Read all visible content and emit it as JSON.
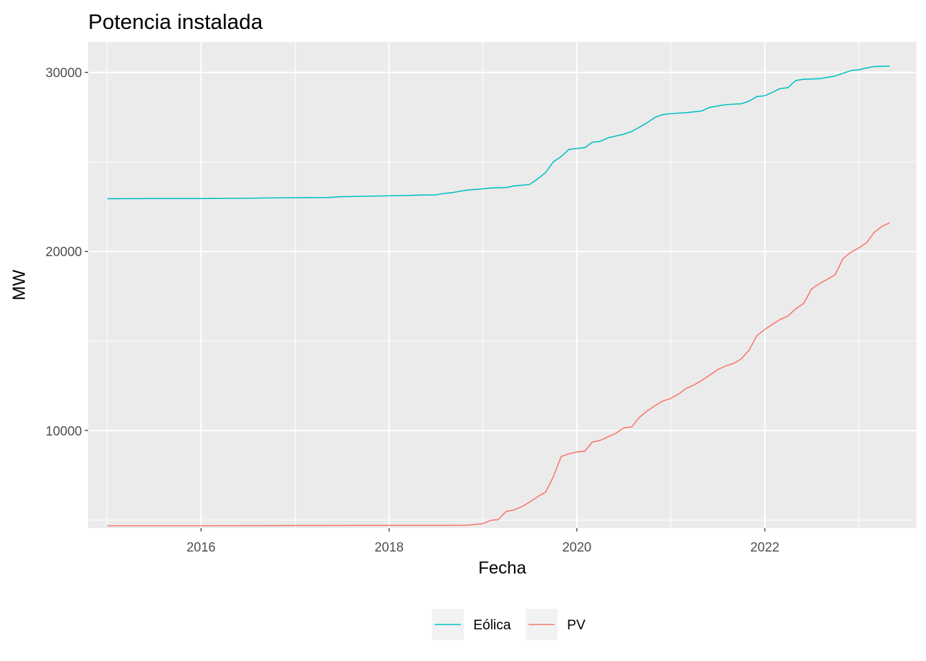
{
  "chart_data": {
    "type": "line",
    "title": "Potencia instalada",
    "xlabel": "Fecha",
    "ylabel": "MW",
    "xlim": [
      "2014-10-19",
      "2023-08-13"
    ],
    "ylim": [
      4550,
      31700
    ],
    "x_ticks": [
      {
        "date": "2016-01-01",
        "label": "2016"
      },
      {
        "date": "2018-01-01",
        "label": "2018"
      },
      {
        "date": "2020-01-01",
        "label": "2020"
      },
      {
        "date": "2022-01-01",
        "label": "2022"
      }
    ],
    "x_minor_ticks": [
      "2015-01-01",
      "2017-01-01",
      "2019-01-01",
      "2021-01-01",
      "2023-01-01"
    ],
    "y_ticks": [
      {
        "value": 10000,
        "label": "10000"
      },
      {
        "value": 20000,
        "label": "20000"
      },
      {
        "value": 30000,
        "label": "30000"
      }
    ],
    "y_minor_ticks": [
      5000,
      15000,
      25000
    ],
    "grid": true,
    "legend_position": "bottom",
    "series": [
      {
        "name": "Eólica",
        "color": "#00bfc4",
        "points": [
          [
            "2015-01-01",
            22950
          ],
          [
            "2015-07-01",
            22960
          ],
          [
            "2016-01-01",
            22960
          ],
          [
            "2016-07-01",
            22970
          ],
          [
            "2016-09-01",
            22990
          ],
          [
            "2017-01-01",
            23000
          ],
          [
            "2017-05-01",
            23010
          ],
          [
            "2017-07-01",
            23060
          ],
          [
            "2018-01-01",
            23110
          ],
          [
            "2018-03-01",
            23120
          ],
          [
            "2018-05-01",
            23150
          ],
          [
            "2018-07-01",
            23160
          ],
          [
            "2018-08-01",
            23240
          ],
          [
            "2018-09-01",
            23280
          ],
          [
            "2018-10-01",
            23360
          ],
          [
            "2018-11-01",
            23430
          ],
          [
            "2019-01-01",
            23500
          ],
          [
            "2019-02-01",
            23550
          ],
          [
            "2019-04-01",
            23570
          ],
          [
            "2019-05-01",
            23660
          ],
          [
            "2019-07-01",
            23740
          ],
          [
            "2019-08-01",
            24050
          ],
          [
            "2019-09-01",
            24400
          ],
          [
            "2019-10-01",
            25000
          ],
          [
            "2019-11-01",
            25300
          ],
          [
            "2019-12-01",
            25700
          ],
          [
            "2020-01-01",
            25750
          ],
          [
            "2020-02-01",
            25800
          ],
          [
            "2020-03-01",
            26100
          ],
          [
            "2020-04-01",
            26150
          ],
          [
            "2020-05-01",
            26350
          ],
          [
            "2020-06-01",
            26450
          ],
          [
            "2020-07-01",
            26550
          ],
          [
            "2020-08-01",
            26700
          ],
          [
            "2020-09-01",
            26950
          ],
          [
            "2020-10-01",
            27200
          ],
          [
            "2020-11-01",
            27500
          ],
          [
            "2020-12-01",
            27650
          ],
          [
            "2021-01-01",
            27700
          ],
          [
            "2021-03-01",
            27750
          ],
          [
            "2021-05-01",
            27850
          ],
          [
            "2021-06-01",
            28050
          ],
          [
            "2021-08-01",
            28200
          ],
          [
            "2021-10-01",
            28250
          ],
          [
            "2021-11-01",
            28400
          ],
          [
            "2021-12-01",
            28650
          ],
          [
            "2022-01-01",
            28700
          ],
          [
            "2022-02-01",
            28900
          ],
          [
            "2022-03-01",
            29100
          ],
          [
            "2022-04-01",
            29150
          ],
          [
            "2022-05-01",
            29550
          ],
          [
            "2022-06-01",
            29620
          ],
          [
            "2022-08-01",
            29650
          ],
          [
            "2022-10-01",
            29800
          ],
          [
            "2022-11-01",
            29950
          ],
          [
            "2022-12-01",
            30100
          ],
          [
            "2023-01-01",
            30150
          ],
          [
            "2023-02-01",
            30250
          ],
          [
            "2023-03-01",
            30330
          ],
          [
            "2023-05-01",
            30350
          ]
        ]
      },
      {
        "name": "PV",
        "color": "#f8766d",
        "points": [
          [
            "2015-01-01",
            4680
          ],
          [
            "2016-01-01",
            4680
          ],
          [
            "2017-01-01",
            4690
          ],
          [
            "2018-01-01",
            4700
          ],
          [
            "2018-07-01",
            4700
          ],
          [
            "2018-11-01",
            4710
          ],
          [
            "2019-01-01",
            4800
          ],
          [
            "2019-02-01",
            4990
          ],
          [
            "2019-03-01",
            5020
          ],
          [
            "2019-04-01",
            5480
          ],
          [
            "2019-05-01",
            5560
          ],
          [
            "2019-06-01",
            5750
          ],
          [
            "2019-07-01",
            6000
          ],
          [
            "2019-08-01",
            6300
          ],
          [
            "2019-09-01",
            6550
          ],
          [
            "2019-10-01",
            7400
          ],
          [
            "2019-11-01",
            8550
          ],
          [
            "2019-12-01",
            8700
          ],
          [
            "2020-01-01",
            8800
          ],
          [
            "2020-02-01",
            8850
          ],
          [
            "2020-03-01",
            9350
          ],
          [
            "2020-04-01",
            9450
          ],
          [
            "2020-05-01",
            9650
          ],
          [
            "2020-06-01",
            9850
          ],
          [
            "2020-07-01",
            10150
          ],
          [
            "2020-08-01",
            10200
          ],
          [
            "2020-09-01",
            10750
          ],
          [
            "2020-10-01",
            11100
          ],
          [
            "2020-11-01",
            11400
          ],
          [
            "2020-12-01",
            11650
          ],
          [
            "2021-01-01",
            11800
          ],
          [
            "2021-02-01",
            12050
          ],
          [
            "2021-03-01",
            12350
          ],
          [
            "2021-04-01",
            12550
          ],
          [
            "2021-05-01",
            12800
          ],
          [
            "2021-06-01",
            13100
          ],
          [
            "2021-07-01",
            13400
          ],
          [
            "2021-08-01",
            13600
          ],
          [
            "2021-09-01",
            13750
          ],
          [
            "2021-10-01",
            14000
          ],
          [
            "2021-11-01",
            14500
          ],
          [
            "2021-12-01",
            15300
          ],
          [
            "2022-01-01",
            15650
          ],
          [
            "2022-02-01",
            15950
          ],
          [
            "2022-03-01",
            16200
          ],
          [
            "2022-04-01",
            16400
          ],
          [
            "2022-05-01",
            16800
          ],
          [
            "2022-06-01",
            17100
          ],
          [
            "2022-07-01",
            17900
          ],
          [
            "2022-08-01",
            18200
          ],
          [
            "2022-09-01",
            18450
          ],
          [
            "2022-10-01",
            18700
          ],
          [
            "2022-11-01",
            19600
          ],
          [
            "2022-12-01",
            19950
          ],
          [
            "2023-01-01",
            20200
          ],
          [
            "2023-02-01",
            20500
          ],
          [
            "2023-03-01",
            21050
          ],
          [
            "2023-04-01",
            21400
          ],
          [
            "2023-05-01",
            21600
          ]
        ]
      }
    ]
  }
}
